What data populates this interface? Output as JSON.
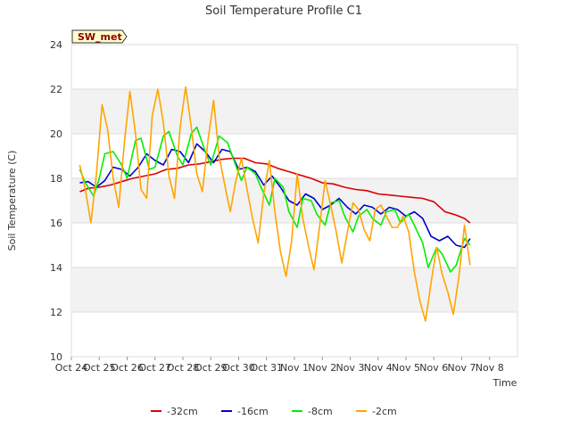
{
  "chart_data": {
    "type": "line",
    "title": "Soil Temperature Profile C1",
    "xlabel": "Time",
    "ylabel": "Soil Temperature (C)",
    "badge": "SW_met",
    "xlim": [
      0,
      16
    ],
    "ylim": [
      10,
      24
    ],
    "yticks": [
      10,
      12,
      14,
      16,
      18,
      20,
      22,
      24
    ],
    "xtick_labels": [
      "Oct 24",
      "Oct 25",
      "Oct 26",
      "Oct 27",
      "Oct 28",
      "Oct 29",
      "Oct 30",
      "Oct 31",
      "Nov 1",
      "Nov 2",
      "Nov 3",
      "Nov 4",
      "Nov 5",
      "Nov 6",
      "Nov 7",
      "Nov 8"
    ],
    "grid": true,
    "legend_position": "bottom",
    "series": [
      {
        "name": "-32cm",
        "color": "#dd0000",
        "x": [
          0.3,
          0.6,
          1.0,
          1.4,
          1.8,
          2.2,
          2.6,
          3.0,
          3.4,
          3.8,
          4.2,
          4.6,
          5.0,
          5.4,
          5.8,
          6.2,
          6.6,
          7.0,
          7.4,
          7.8,
          8.2,
          8.6,
          9.0,
          9.4,
          9.8,
          10.2,
          10.6,
          11.0,
          11.4,
          11.8,
          12.2,
          12.6,
          13.0,
          13.4,
          13.8,
          14.1,
          14.3
        ],
        "y": [
          17.4,
          17.55,
          17.6,
          17.7,
          17.85,
          18.0,
          18.1,
          18.2,
          18.4,
          18.45,
          18.6,
          18.65,
          18.75,
          18.85,
          18.9,
          18.9,
          18.7,
          18.65,
          18.45,
          18.3,
          18.15,
          18.0,
          17.8,
          17.75,
          17.6,
          17.5,
          17.45,
          17.3,
          17.25,
          17.2,
          17.15,
          17.1,
          16.95,
          16.5,
          16.35,
          16.2,
          16.0
        ]
      },
      {
        "name": "-16cm",
        "color": "#0000cc",
        "x": [
          0.3,
          0.6,
          0.9,
          1.2,
          1.5,
          1.8,
          2.1,
          2.4,
          2.7,
          3.0,
          3.3,
          3.6,
          3.9,
          4.2,
          4.5,
          4.8,
          5.1,
          5.4,
          5.7,
          6.0,
          6.3,
          6.6,
          6.9,
          7.2,
          7.5,
          7.8,
          8.1,
          8.4,
          8.7,
          9.0,
          9.3,
          9.6,
          9.9,
          10.2,
          10.5,
          10.8,
          11.1,
          11.4,
          11.7,
          12.0,
          12.3,
          12.6,
          12.9,
          13.2,
          13.5,
          13.8,
          14.1,
          14.3
        ],
        "y": [
          17.8,
          17.85,
          17.6,
          17.9,
          18.5,
          18.4,
          18.1,
          18.5,
          19.1,
          18.8,
          18.6,
          19.3,
          19.2,
          18.7,
          19.55,
          19.2,
          18.7,
          19.3,
          19.2,
          18.4,
          18.5,
          18.3,
          17.7,
          18.1,
          17.6,
          17.0,
          16.8,
          17.3,
          17.1,
          16.6,
          16.8,
          17.1,
          16.7,
          16.4,
          16.8,
          16.7,
          16.4,
          16.7,
          16.6,
          16.3,
          16.5,
          16.2,
          15.4,
          15.2,
          15.4,
          15.0,
          14.9,
          15.3
        ]
      },
      {
        "name": "-8cm",
        "color": "#00ee00",
        "x": [
          0.3,
          0.5,
          0.8,
          1.0,
          1.2,
          1.5,
          1.8,
          2.0,
          2.3,
          2.5,
          2.8,
          3.0,
          3.3,
          3.5,
          3.8,
          4.0,
          4.3,
          4.5,
          4.8,
          5.0,
          5.3,
          5.6,
          5.8,
          6.1,
          6.3,
          6.6,
          6.8,
          7.1,
          7.3,
          7.6,
          7.8,
          8.1,
          8.3,
          8.6,
          8.8,
          9.1,
          9.3,
          9.6,
          9.8,
          10.1,
          10.3,
          10.6,
          10.8,
          11.1,
          11.3,
          11.6,
          11.8,
          12.1,
          12.3,
          12.6,
          12.8,
          13.1,
          13.3,
          13.6,
          13.8,
          14.1,
          14.3
        ],
        "y": [
          18.4,
          17.8,
          17.2,
          18.0,
          19.1,
          19.2,
          18.6,
          18.0,
          19.7,
          19.8,
          18.4,
          18.5,
          19.9,
          20.1,
          19.0,
          18.6,
          20.0,
          20.3,
          19.2,
          18.6,
          19.9,
          19.6,
          18.9,
          17.9,
          18.5,
          18.2,
          17.6,
          16.8,
          18.0,
          17.6,
          16.5,
          15.8,
          17.1,
          17.0,
          16.4,
          15.9,
          16.9,
          17.0,
          16.3,
          15.6,
          16.3,
          16.6,
          16.2,
          15.9,
          16.5,
          16.6,
          16.0,
          16.4,
          15.9,
          15.1,
          14.0,
          14.9,
          14.6,
          13.8,
          14.1,
          15.3,
          15.0
        ]
      },
      {
        "name": "-2cm",
        "color": "#ffa500",
        "x": [
          0.3,
          0.5,
          0.7,
          0.9,
          1.1,
          1.3,
          1.5,
          1.7,
          1.9,
          2.1,
          2.3,
          2.5,
          2.7,
          2.9,
          3.1,
          3.3,
          3.5,
          3.7,
          3.9,
          4.1,
          4.3,
          4.5,
          4.7,
          4.9,
          5.1,
          5.3,
          5.5,
          5.7,
          5.9,
          6.1,
          6.3,
          6.5,
          6.7,
          6.9,
          7.1,
          7.3,
          7.5,
          7.7,
          7.9,
          8.1,
          8.3,
          8.5,
          8.7,
          8.9,
          9.1,
          9.3,
          9.5,
          9.7,
          9.9,
          10.1,
          10.3,
          10.5,
          10.7,
          10.9,
          11.1,
          11.3,
          11.5,
          11.7,
          11.9,
          12.1,
          12.3,
          12.5,
          12.7,
          12.9,
          13.1,
          13.3,
          13.5,
          13.7,
          13.9,
          14.1,
          14.3
        ],
        "y": [
          18.6,
          17.5,
          16.0,
          18.2,
          21.3,
          20.2,
          18.0,
          16.7,
          19.6,
          21.9,
          20.0,
          17.5,
          17.1,
          20.8,
          22.0,
          20.5,
          18.1,
          17.1,
          20.3,
          22.1,
          20.3,
          18.2,
          17.4,
          19.7,
          21.5,
          19.0,
          17.7,
          16.5,
          17.9,
          18.9,
          17.5,
          16.2,
          15.1,
          17.3,
          18.8,
          16.5,
          14.7,
          13.6,
          15.2,
          18.2,
          16.2,
          15.0,
          13.9,
          15.8,
          17.9,
          16.8,
          15.6,
          14.2,
          15.6,
          16.9,
          16.6,
          15.7,
          15.2,
          16.6,
          16.8,
          16.3,
          15.8,
          15.8,
          16.3,
          15.6,
          13.8,
          12.5,
          11.6,
          13.3,
          14.9,
          13.7,
          12.9,
          11.9,
          13.6,
          15.9,
          14.1
        ]
      }
    ]
  }
}
